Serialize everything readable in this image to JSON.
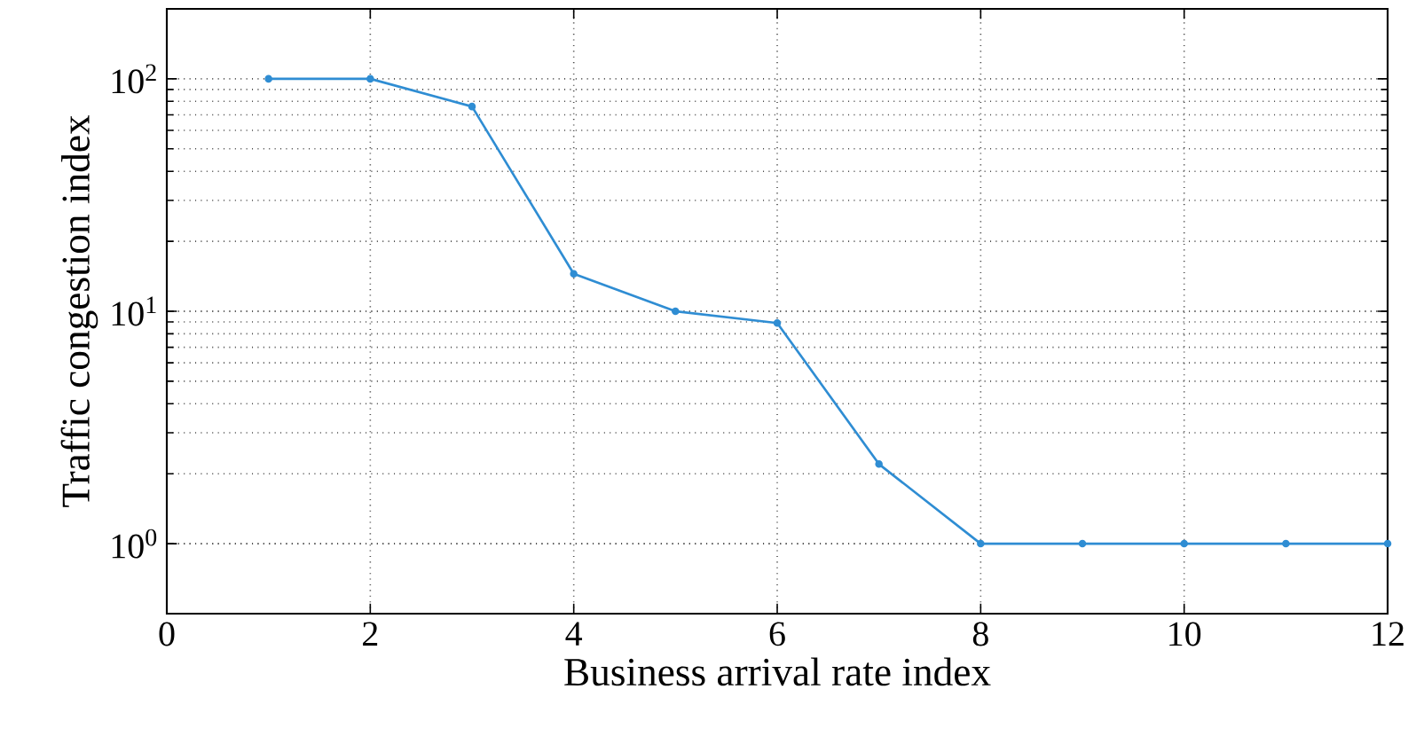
{
  "chart_data": {
    "type": "line",
    "xlabel": "Business arrival rate index",
    "ylabel": "Traffic congestion index",
    "x": [
      1,
      2,
      3,
      4,
      5,
      6,
      7,
      8,
      9,
      10,
      11,
      12
    ],
    "series": [
      {
        "color": "#2f8dd3",
        "values": [
          100,
          100,
          76,
          14.5,
          10,
          8.9,
          2.2,
          1,
          1,
          1,
          1,
          1
        ]
      }
    ],
    "xlim": [
      0,
      12
    ],
    "xticks": [
      0,
      2,
      4,
      6,
      8,
      10,
      12
    ],
    "ylim": [
      0.5,
      200
    ],
    "yticks": [
      {
        "value": 1,
        "label": "10$^{0}$"
      },
      {
        "value": 10,
        "label": "10$^{1}$"
      },
      {
        "value": 100,
        "label": "10$^{2}$"
      }
    ],
    "log": "y",
    "grid": true,
    "marker": "circle",
    "line_style": "solid"
  }
}
